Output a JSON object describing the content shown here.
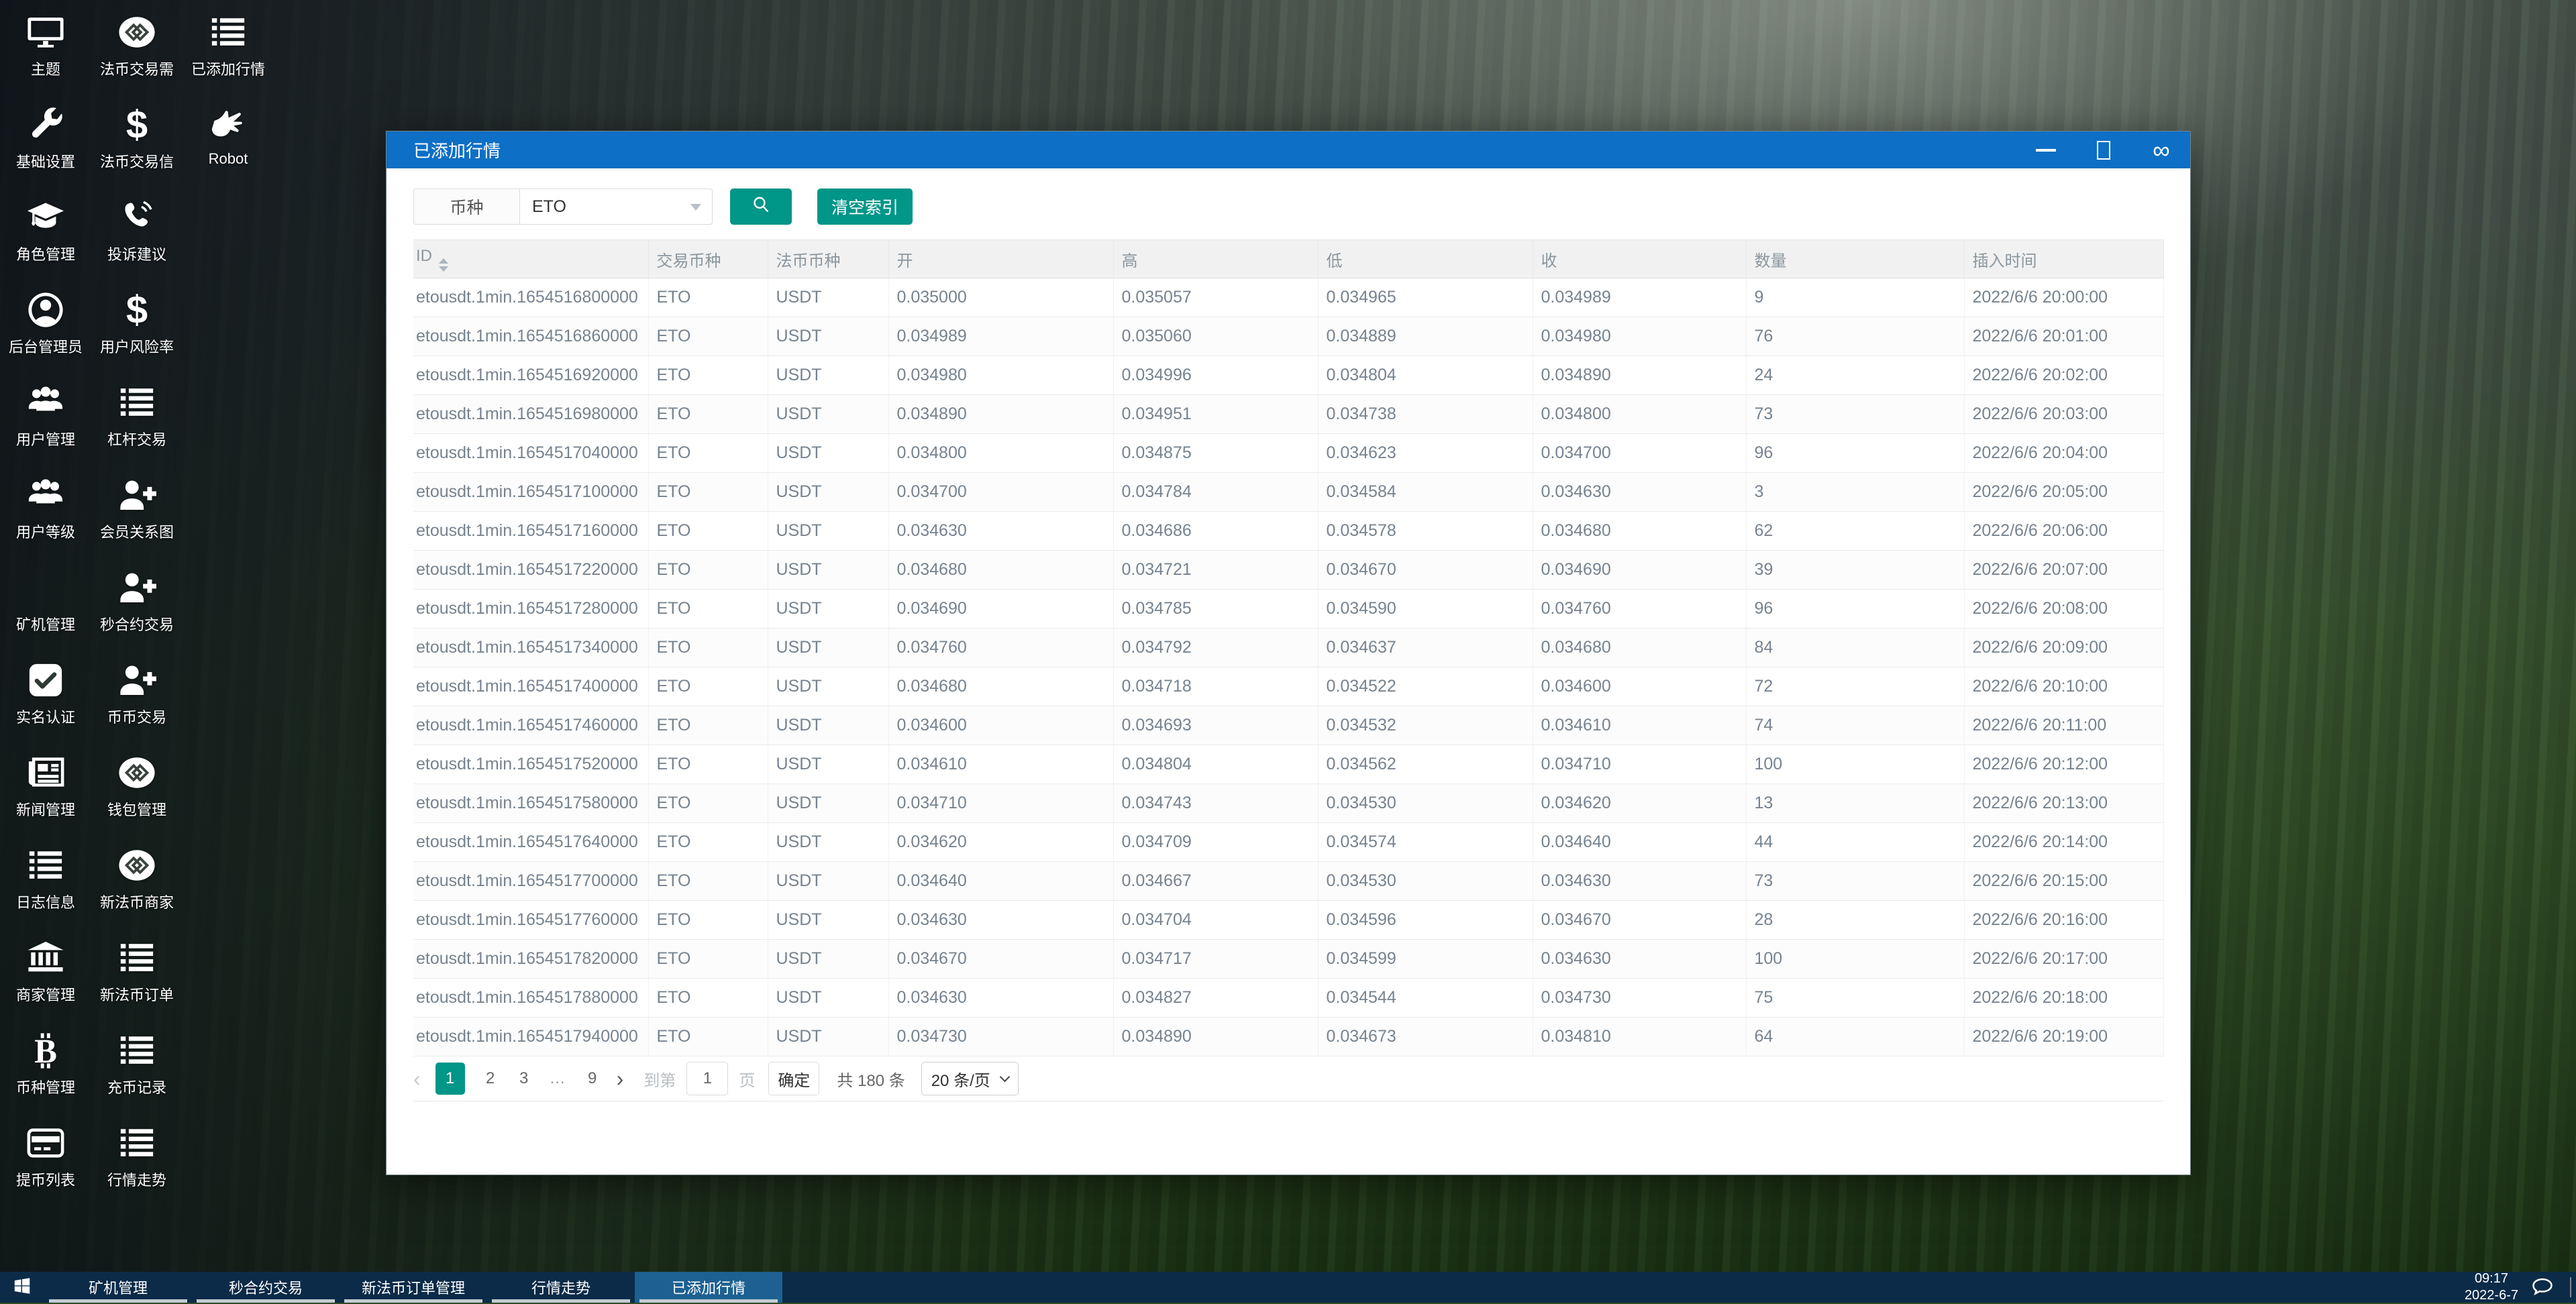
{
  "desktop": {
    "icons": [
      {
        "label": "主题",
        "icon": "monitor-icon"
      },
      {
        "label": "基础设置",
        "icon": "wrench-icon"
      },
      {
        "label": "角色管理",
        "icon": "graduation-cap-icon"
      },
      {
        "label": "后台管理员",
        "icon": "admin-circle-icon"
      },
      {
        "label": "用户管理",
        "icon": "users-icon"
      },
      {
        "label": "用户等级",
        "icon": "users-icon"
      },
      {
        "label": "矿机管理",
        "icon": "blank-icon"
      },
      {
        "label": "实名认证",
        "icon": "check-square-icon"
      },
      {
        "label": "新闻管理",
        "icon": "newspaper-icon"
      },
      {
        "label": "日志信息",
        "icon": "list-icon"
      },
      {
        "label": "商家管理",
        "icon": "bank-icon"
      },
      {
        "label": "币种管理",
        "icon": "bitcoin-icon"
      },
      {
        "label": "提币列表",
        "icon": "credit-card-icon"
      },
      {
        "label": "法币交易需",
        "icon": "coin-logo-icon"
      },
      {
        "label": "法币交易信",
        "icon": "dollar-icon"
      },
      {
        "label": "投诉建议",
        "icon": "phone-icon"
      },
      {
        "label": "用户风险率",
        "icon": "dollar-icon"
      },
      {
        "label": "杠杆交易",
        "icon": "list-icon"
      },
      {
        "label": "会员关系图",
        "icon": "user-plus-icon"
      },
      {
        "label": "秒合约交易",
        "icon": "user-plus-icon"
      },
      {
        "label": "币币交易",
        "icon": "user-plus-icon"
      },
      {
        "label": "钱包管理",
        "icon": "coin-logo-icon"
      },
      {
        "label": "新法币商家",
        "icon": "coin-logo-icon"
      },
      {
        "label": "新法币订单",
        "icon": "list-icon"
      },
      {
        "label": "充币记录",
        "icon": "list-icon"
      },
      {
        "label": "行情走势",
        "icon": "list-icon"
      },
      {
        "label": "已添加行情",
        "icon": "list-icon"
      },
      {
        "label": "Robot",
        "icon": "hand-icon"
      }
    ]
  },
  "window": {
    "title": "已添加行情",
    "controls": [
      "minimize-icon",
      "maximize-icon",
      "loop-icon"
    ]
  },
  "filter": {
    "field_label": "币种",
    "selected": "ETO",
    "search_icon": "magnifier-icon",
    "clear_label": "清空索引"
  },
  "table": {
    "headers": [
      "ID",
      "交易币种",
      "法币币种",
      "开",
      "高",
      "低",
      "收",
      "数量",
      "插入时间"
    ],
    "rows": [
      [
        "etousdt.1min.1654516800000",
        "ETO",
        "USDT",
        "0.035000",
        "0.035057",
        "0.034965",
        "0.034989",
        "9",
        "2022/6/6 20:00:00"
      ],
      [
        "etousdt.1min.1654516860000",
        "ETO",
        "USDT",
        "0.034989",
        "0.035060",
        "0.034889",
        "0.034980",
        "76",
        "2022/6/6 20:01:00"
      ],
      [
        "etousdt.1min.1654516920000",
        "ETO",
        "USDT",
        "0.034980",
        "0.034996",
        "0.034804",
        "0.034890",
        "24",
        "2022/6/6 20:02:00"
      ],
      [
        "etousdt.1min.1654516980000",
        "ETO",
        "USDT",
        "0.034890",
        "0.034951",
        "0.034738",
        "0.034800",
        "73",
        "2022/6/6 20:03:00"
      ],
      [
        "etousdt.1min.1654517040000",
        "ETO",
        "USDT",
        "0.034800",
        "0.034875",
        "0.034623",
        "0.034700",
        "96",
        "2022/6/6 20:04:00"
      ],
      [
        "etousdt.1min.1654517100000",
        "ETO",
        "USDT",
        "0.034700",
        "0.034784",
        "0.034584",
        "0.034630",
        "3",
        "2022/6/6 20:05:00"
      ],
      [
        "etousdt.1min.1654517160000",
        "ETO",
        "USDT",
        "0.034630",
        "0.034686",
        "0.034578",
        "0.034680",
        "62",
        "2022/6/6 20:06:00"
      ],
      [
        "etousdt.1min.1654517220000",
        "ETO",
        "USDT",
        "0.034680",
        "0.034721",
        "0.034670",
        "0.034690",
        "39",
        "2022/6/6 20:07:00"
      ],
      [
        "etousdt.1min.1654517280000",
        "ETO",
        "USDT",
        "0.034690",
        "0.034785",
        "0.034590",
        "0.034760",
        "96",
        "2022/6/6 20:08:00"
      ],
      [
        "etousdt.1min.1654517340000",
        "ETO",
        "USDT",
        "0.034760",
        "0.034792",
        "0.034637",
        "0.034680",
        "84",
        "2022/6/6 20:09:00"
      ],
      [
        "etousdt.1min.1654517400000",
        "ETO",
        "USDT",
        "0.034680",
        "0.034718",
        "0.034522",
        "0.034600",
        "72",
        "2022/6/6 20:10:00"
      ],
      [
        "etousdt.1min.1654517460000",
        "ETO",
        "USDT",
        "0.034600",
        "0.034693",
        "0.034532",
        "0.034610",
        "74",
        "2022/6/6 20:11:00"
      ],
      [
        "etousdt.1min.1654517520000",
        "ETO",
        "USDT",
        "0.034610",
        "0.034804",
        "0.034562",
        "0.034710",
        "100",
        "2022/6/6 20:12:00"
      ],
      [
        "etousdt.1min.1654517580000",
        "ETO",
        "USDT",
        "0.034710",
        "0.034743",
        "0.034530",
        "0.034620",
        "13",
        "2022/6/6 20:13:00"
      ],
      [
        "etousdt.1min.1654517640000",
        "ETO",
        "USDT",
        "0.034620",
        "0.034709",
        "0.034574",
        "0.034640",
        "44",
        "2022/6/6 20:14:00"
      ],
      [
        "etousdt.1min.1654517700000",
        "ETO",
        "USDT",
        "0.034640",
        "0.034667",
        "0.034530",
        "0.034630",
        "73",
        "2022/6/6 20:15:00"
      ],
      [
        "etousdt.1min.1654517760000",
        "ETO",
        "USDT",
        "0.034630",
        "0.034704",
        "0.034596",
        "0.034670",
        "28",
        "2022/6/6 20:16:00"
      ],
      [
        "etousdt.1min.1654517820000",
        "ETO",
        "USDT",
        "0.034670",
        "0.034717",
        "0.034599",
        "0.034630",
        "100",
        "2022/6/6 20:17:00"
      ],
      [
        "etousdt.1min.1654517880000",
        "ETO",
        "USDT",
        "0.034630",
        "0.034827",
        "0.034544",
        "0.034730",
        "75",
        "2022/6/6 20:18:00"
      ],
      [
        "etousdt.1min.1654517940000",
        "ETO",
        "USDT",
        "0.034730",
        "0.034890",
        "0.034673",
        "0.034810",
        "64",
        "2022/6/6 20:19:00"
      ]
    ]
  },
  "pagination": {
    "pages": [
      "1",
      "2",
      "3",
      "…",
      "9"
    ],
    "active": "1",
    "goto_prefix": "到第",
    "goto_value": "1",
    "goto_suffix": "页",
    "confirm": "确定",
    "total": "共 180 条",
    "page_size": "20 条/页"
  },
  "taskbar": {
    "items": [
      {
        "label": "矿机管理",
        "active": false
      },
      {
        "label": "秒合约交易",
        "active": false
      },
      {
        "label": "新法币订单管理",
        "active": false
      },
      {
        "label": "行情走势",
        "active": false
      },
      {
        "label": "已添加行情",
        "active": true
      }
    ],
    "time": "09:17",
    "date": "2022-6-7"
  },
  "colors": {
    "accent_teal": "#009688",
    "titlebar_blue": "#0d6fc5",
    "taskbar_navy": "#0b2b48",
    "taskbar_active": "#1d6091"
  }
}
